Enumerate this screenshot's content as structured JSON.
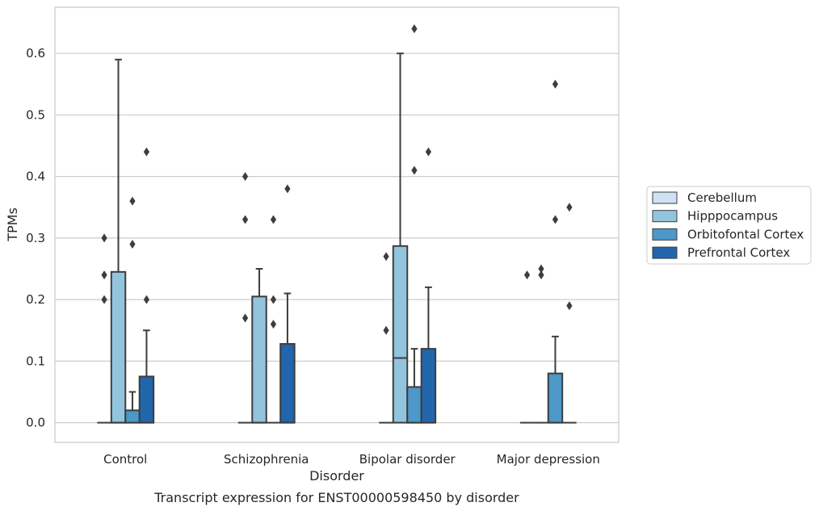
{
  "chart_data": {
    "type": "boxplot",
    "xlabel": "Disorder",
    "ylabel": "TPMs",
    "caption": "Transcript expression for ENST00000598450 by disorder",
    "categories": [
      "Control",
      "Schizophrenia",
      "Bipolar disorder",
      "Major depression"
    ],
    "ylim": [
      -0.032,
      0.675
    ],
    "yticks": [
      0.0,
      0.1,
      0.2,
      0.3,
      0.4,
      0.5,
      0.6
    ],
    "ytick_labels": [
      "0.0",
      "0.1",
      "0.2",
      "0.3",
      "0.4",
      "0.5",
      "0.6"
    ],
    "grid": "horizontal",
    "legend_placement": "right",
    "series": [
      {
        "name": "Cerebellum",
        "color": "#cfe1f2",
        "boxes": [
          {
            "q1": 0,
            "median": 0,
            "q3": 0,
            "whislo": 0,
            "whishi": 0,
            "fliers": [
              0.3,
              0.24,
              0.2
            ]
          },
          {
            "q1": 0,
            "median": 0,
            "q3": 0,
            "whislo": 0,
            "whishi": 0,
            "fliers": [
              0.4,
              0.33,
              0.17
            ]
          },
          {
            "q1": 0,
            "median": 0,
            "q3": 0,
            "whislo": 0,
            "whishi": 0,
            "fliers": [
              0.27,
              0.15
            ]
          },
          {
            "q1": 0,
            "median": 0,
            "q3": 0,
            "whislo": 0,
            "whishi": 0,
            "fliers": [
              0.24
            ]
          }
        ]
      },
      {
        "name": "Hipppocampus",
        "color": "#93c4de",
        "boxes": [
          {
            "q1": 0,
            "median": 0,
            "q3": 0.245,
            "whislo": 0,
            "whishi": 0.59,
            "fliers": []
          },
          {
            "q1": 0,
            "median": 0,
            "q3": 0.205,
            "whislo": 0,
            "whishi": 0.25,
            "fliers": []
          },
          {
            "q1": 0,
            "median": 0.105,
            "q3": 0.287,
            "whislo": 0,
            "whishi": 0.6,
            "fliers": []
          },
          {
            "q1": 0,
            "median": 0,
            "q3": 0,
            "whislo": 0,
            "whishi": 0,
            "fliers": [
              0.25,
              0.24
            ]
          }
        ]
      },
      {
        "name": "Orbitofontal Cortex",
        "color": "#4b98c9",
        "boxes": [
          {
            "q1": 0,
            "median": 0,
            "q3": 0.02,
            "whislo": 0,
            "whishi": 0.05,
            "fliers": [
              0.36,
              0.29
            ]
          },
          {
            "q1": 0,
            "median": 0,
            "q3": 0,
            "whislo": 0,
            "whishi": 0,
            "fliers": [
              0.33,
              0.2,
              0.16
            ]
          },
          {
            "q1": 0,
            "median": 0,
            "q3": 0.058,
            "whislo": 0,
            "whishi": 0.12,
            "fliers": [
              0.64,
              0.41
            ]
          },
          {
            "q1": 0,
            "median": 0,
            "q3": 0.08,
            "whislo": 0,
            "whishi": 0.14,
            "fliers": [
              0.55,
              0.33
            ]
          }
        ]
      },
      {
        "name": "Prefrontal Cortex",
        "color": "#2166ac",
        "boxes": [
          {
            "q1": 0,
            "median": 0,
            "q3": 0.075,
            "whislo": 0,
            "whishi": 0.15,
            "fliers": [
              0.44,
              0.2
            ]
          },
          {
            "q1": 0,
            "median": 0,
            "q3": 0.128,
            "whislo": 0,
            "whishi": 0.21,
            "fliers": [
              0.38
            ]
          },
          {
            "q1": 0,
            "median": 0,
            "q3": 0.12,
            "whislo": 0,
            "whishi": 0.22,
            "fliers": [
              0.44
            ]
          },
          {
            "q1": 0,
            "median": 0,
            "q3": 0,
            "whislo": 0,
            "whishi": 0,
            "fliers": [
              0.35,
              0.19
            ]
          }
        ]
      }
    ]
  }
}
